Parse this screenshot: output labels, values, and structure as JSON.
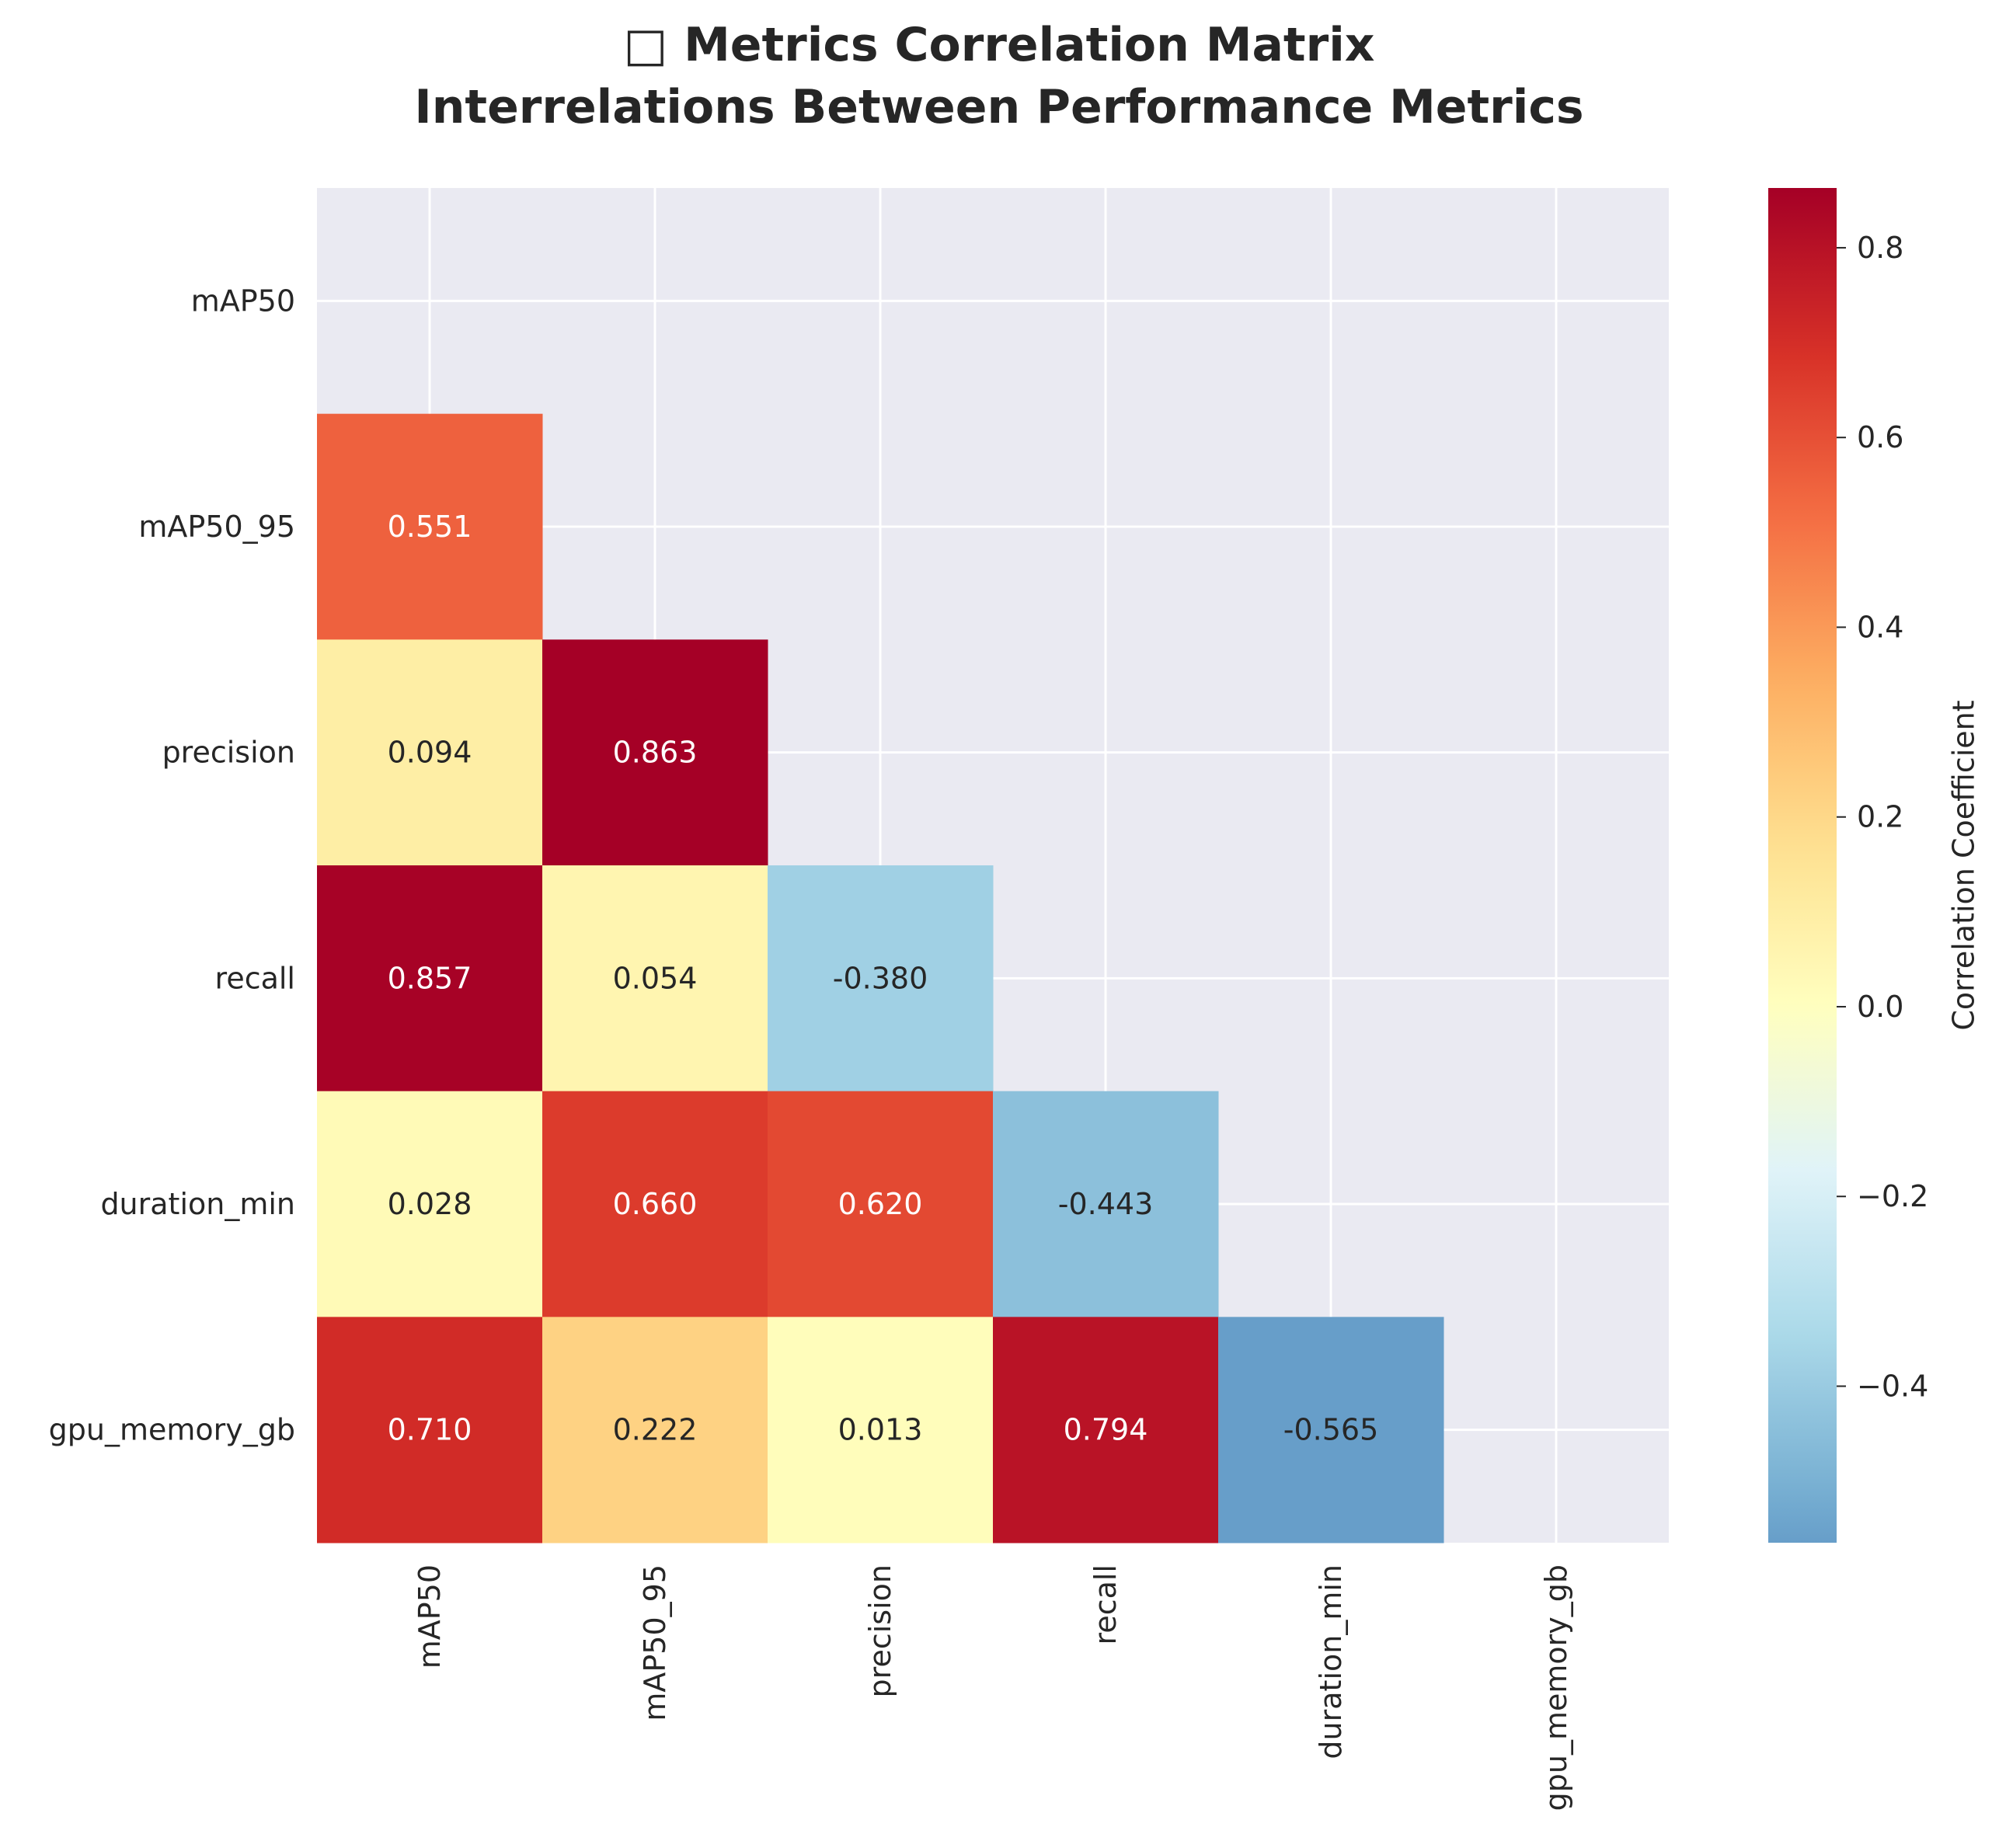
{
  "chart_data": {
    "type": "heatmap",
    "title_lines": [
      "□ Metrics Correlation Matrix",
      "Interrelations Between Performance Metrics"
    ],
    "rows": [
      "mAP50",
      "mAP50_95",
      "precision",
      "recall",
      "duration_min",
      "gpu_memory_gb"
    ],
    "cols": [
      "mAP50",
      "mAP50_95",
      "precision",
      "recall",
      "duration_min",
      "gpu_memory_gb"
    ],
    "matrix": [
      [
        null,
        null,
        null,
        null,
        null,
        null
      ],
      [
        0.551,
        null,
        null,
        null,
        null,
        null
      ],
      [
        0.094,
        0.863,
        null,
        null,
        null,
        null
      ],
      [
        0.857,
        0.054,
        -0.38,
        null,
        null,
        null
      ],
      [
        0.028,
        0.66,
        0.62,
        -0.443,
        null,
        null
      ],
      [
        0.71,
        0.222,
        0.013,
        0.794,
        -0.565,
        null
      ]
    ],
    "cell_labels": [
      [
        null,
        null,
        null,
        null,
        null,
        null
      ],
      [
        "0.551",
        null,
        null,
        null,
        null,
        null
      ],
      [
        "0.094",
        "0.863",
        null,
        null,
        null,
        null
      ],
      [
        "0.857",
        "0.054",
        "-0.380",
        null,
        null,
        null
      ],
      [
        "0.028",
        "0.660",
        "0.620",
        "-0.443",
        null,
        null
      ],
      [
        "0.710",
        "0.222",
        "0.013",
        "0.794",
        "-0.565",
        null
      ]
    ],
    "mask": "upper-triangle-including-diagonal",
    "colormap": "RdYlBu_r",
    "vmin": -0.565,
    "vmax": 0.863,
    "colorbar": {
      "label": "Correlation Coefficient",
      "ticks": [
        0.8,
        0.6,
        0.4,
        0.2,
        0.0,
        -0.2,
        -0.4
      ],
      "tick_labels": [
        "0.8",
        "0.6",
        "0.4",
        "0.2",
        "0.0",
        "−0.2",
        "−0.4"
      ],
      "placement": "right"
    },
    "grid": true,
    "background_color": "#eaeaf2"
  }
}
